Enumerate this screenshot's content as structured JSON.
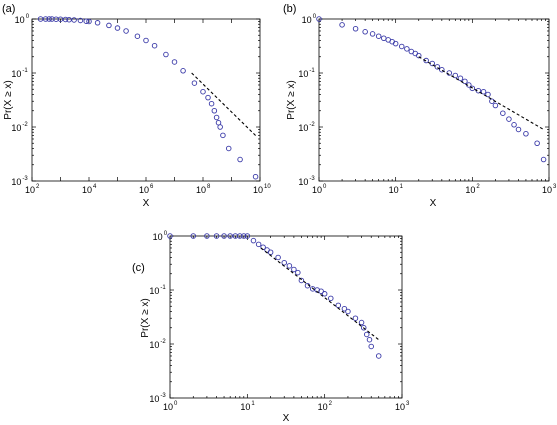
{
  "colors": {
    "marker": "#3a3aa8",
    "fit_line": "#000000",
    "axes": "#000000",
    "background": "#ffffff"
  },
  "panels": [
    {
      "label": "(a)",
      "xlabel": "X",
      "ylabel": "Pr(X ≥ x)"
    },
    {
      "label": "(b)",
      "xlabel": "X",
      "ylabel": "Pr(X ≥ x)"
    },
    {
      "label": "(c)",
      "xlabel": "X",
      "ylabel": "Pr(X ≥ x)"
    }
  ],
  "chart_data": [
    {
      "type": "scatter",
      "panel": "(a)",
      "title": "",
      "xlabel": "X",
      "ylabel": "Pr(X ≥ x)",
      "xscale": "log",
      "yscale": "log",
      "xlim": [
        100,
        10000000000
      ],
      "ylim": [
        0.001,
        1
      ],
      "xticks": [
        100,
        10000,
        1000000,
        100000000,
        10000000000
      ],
      "xtick_labels": [
        [
          "10",
          "2"
        ],
        [
          "10",
          "4"
        ],
        [
          "10",
          "6"
        ],
        [
          "10",
          "8"
        ],
        [
          "10",
          "10"
        ]
      ],
      "yticks": [
        0.001,
        0.01,
        0.1,
        1
      ],
      "ytick_labels": [
        [
          "10",
          "-3"
        ],
        [
          "10",
          "-2"
        ],
        [
          "10",
          "-1"
        ],
        [
          "10",
          "0"
        ]
      ],
      "grid": false,
      "legend": "none",
      "series": [
        {
          "marker": "open-circle",
          "points": [
            [
              200,
              1.0
            ],
            [
              300,
              1.0
            ],
            [
              400,
              1.0
            ],
            [
              500,
              1.0
            ],
            [
              700,
              0.99
            ],
            [
              1000,
              0.99
            ],
            [
              1500,
              0.98
            ],
            [
              2000,
              0.97
            ],
            [
              3000,
              0.96
            ],
            [
              5000,
              0.94
            ],
            [
              8000,
              0.91
            ],
            [
              10000,
              0.9
            ],
            [
              20000,
              0.85
            ],
            [
              50000,
              0.76
            ],
            [
              100000,
              0.68
            ],
            [
              200000,
              0.6
            ],
            [
              500000,
              0.48
            ],
            [
              1000000,
              0.4
            ],
            [
              2000000,
              0.32
            ],
            [
              5000000,
              0.22
            ],
            [
              10000000,
              0.16
            ],
            [
              20000000,
              0.11
            ],
            [
              50000000,
              0.065
            ],
            [
              100000000,
              0.045
            ],
            [
              150000000,
              0.035
            ],
            [
              200000000,
              0.027
            ],
            [
              250000000,
              0.02
            ],
            [
              300000000,
              0.015
            ],
            [
              350000000,
              0.012
            ],
            [
              400000000,
              0.01
            ],
            [
              500000000,
              0.007
            ],
            [
              800000000,
              0.004
            ],
            [
              2000000000,
              0.0025
            ],
            [
              7000000000,
              0.0012
            ]
          ]
        },
        {
          "name": "",
          "style": "dashed-line",
          "points": [
            [
              40000000,
              0.1
            ],
            [
              8000000000,
              0.0065
            ]
          ]
        }
      ]
    },
    {
      "type": "scatter",
      "panel": "(b)",
      "title": "",
      "xlabel": "X",
      "ylabel": "Pr(X ≥ x)",
      "xscale": "log",
      "yscale": "log",
      "xlim": [
        1,
        1000
      ],
      "ylim": [
        0.001,
        1
      ],
      "xticks": [
        1,
        10,
        100,
        1000
      ],
      "xtick_labels": [
        [
          "10",
          "0"
        ],
        [
          "10",
          "1"
        ],
        [
          "10",
          "2"
        ],
        [
          "10",
          "3"
        ]
      ],
      "yticks": [
        0.001,
        0.01,
        0.1,
        1
      ],
      "ytick_labels": [
        [
          "10",
          "-3"
        ],
        [
          "10",
          "-2"
        ],
        [
          "10",
          "-1"
        ],
        [
          "10",
          "0"
        ]
      ],
      "grid": false,
      "legend": "none",
      "series": [
        {
          "marker": "open-circle",
          "points": [
            [
              1,
              1.0
            ],
            [
              2,
              0.78
            ],
            [
              3,
              0.66
            ],
            [
              4,
              0.58
            ],
            [
              5,
              0.53
            ],
            [
              6,
              0.48
            ],
            [
              7,
              0.44
            ],
            [
              8,
              0.41
            ],
            [
              9,
              0.38
            ],
            [
              10,
              0.35
            ],
            [
              12,
              0.31
            ],
            [
              14,
              0.28
            ],
            [
              16,
              0.25
            ],
            [
              18,
              0.23
            ],
            [
              20,
              0.21
            ],
            [
              25,
              0.17
            ],
            [
              30,
              0.15
            ],
            [
              35,
              0.13
            ],
            [
              40,
              0.115
            ],
            [
              50,
              0.1
            ],
            [
              60,
              0.09
            ],
            [
              70,
              0.08
            ],
            [
              80,
              0.07
            ],
            [
              90,
              0.06
            ],
            [
              100,
              0.052
            ],
            [
              120,
              0.047
            ],
            [
              140,
              0.045
            ],
            [
              160,
              0.04
            ],
            [
              180,
              0.03
            ],
            [
              200,
              0.025
            ],
            [
              250,
              0.018
            ],
            [
              300,
              0.014
            ],
            [
              350,
              0.011
            ],
            [
              400,
              0.009
            ],
            [
              500,
              0.0075
            ],
            [
              700,
              0.005
            ],
            [
              850,
              0.0025
            ]
          ]
        },
        {
          "name": "",
          "style": "dashed-line",
          "points": [
            [
              20,
              0.2
            ],
            [
              850,
              0.009
            ]
          ]
        }
      ]
    },
    {
      "type": "scatter",
      "panel": "(c)",
      "title": "",
      "xlabel": "X",
      "ylabel": "Pr(X ≥ x)",
      "xscale": "log",
      "yscale": "log",
      "xlim": [
        1,
        1000
      ],
      "ylim": [
        0.001,
        1
      ],
      "xticks": [
        1,
        10,
        100,
        1000
      ],
      "xtick_labels": [
        [
          "10",
          "0"
        ],
        [
          "10",
          "1"
        ],
        [
          "10",
          "2"
        ],
        [
          "10",
          "3"
        ]
      ],
      "yticks": [
        0.001,
        0.01,
        0.1,
        1
      ],
      "ytick_labels": [
        [
          "10",
          "-3"
        ],
        [
          "10",
          "-2"
        ],
        [
          "10",
          "-1"
        ],
        [
          "10",
          "0"
        ]
      ],
      "grid": false,
      "legend": "none",
      "series": [
        {
          "marker": "open-circle",
          "points": [
            [
              1,
              1.0
            ],
            [
              2,
              1.0
            ],
            [
              3,
              1.0
            ],
            [
              4,
              1.0
            ],
            [
              5,
              1.0
            ],
            [
              6,
              1.0
            ],
            [
              7,
              1.0
            ],
            [
              8,
              1.0
            ],
            [
              9,
              1.0
            ],
            [
              10,
              1.0
            ],
            [
              12,
              0.82
            ],
            [
              14,
              0.7
            ],
            [
              16,
              0.62
            ],
            [
              18,
              0.55
            ],
            [
              20,
              0.5
            ],
            [
              25,
              0.4
            ],
            [
              30,
              0.32
            ],
            [
              35,
              0.28
            ],
            [
              40,
              0.24
            ],
            [
              45,
              0.21
            ],
            [
              50,
              0.15
            ],
            [
              60,
              0.12
            ],
            [
              70,
              0.105
            ],
            [
              80,
              0.1
            ],
            [
              90,
              0.095
            ],
            [
              100,
              0.085
            ],
            [
              120,
              0.07
            ],
            [
              150,
              0.052
            ],
            [
              180,
              0.045
            ],
            [
              200,
              0.04
            ],
            [
              250,
              0.03
            ],
            [
              300,
              0.025
            ],
            [
              320,
              0.02
            ],
            [
              350,
              0.015
            ],
            [
              380,
              0.012
            ],
            [
              400,
              0.009
            ],
            [
              500,
              0.006
            ]
          ]
        },
        {
          "name": "",
          "style": "dashed-line",
          "points": [
            [
              15,
              0.6
            ],
            [
              500,
              0.012
            ]
          ]
        }
      ]
    }
  ]
}
